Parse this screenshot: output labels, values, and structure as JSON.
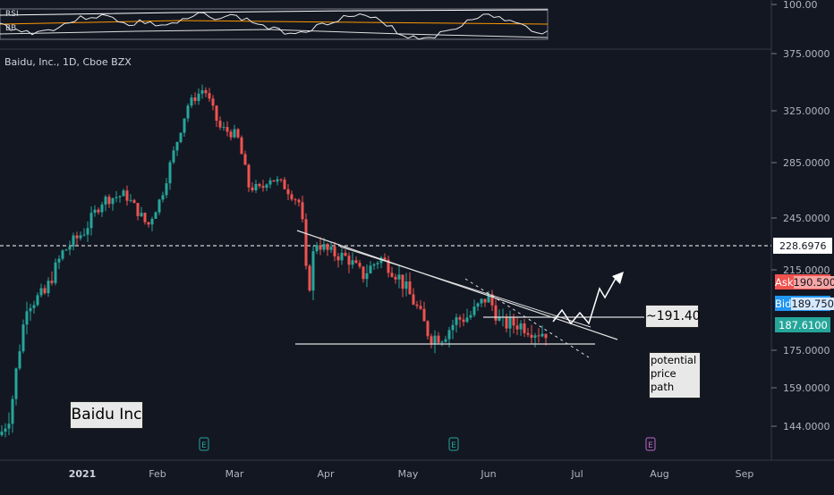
{
  "symbol_title": "Baidu, Inc., 1D, Cboe BZX",
  "indicators": [
    {
      "name": "RSI"
    },
    {
      "name": "BB"
    }
  ],
  "indicator_axis_label": "100.00",
  "price_axis_labels": [
    "375.0000",
    "325.0000",
    "285.0000",
    "245.0000",
    "215.0000",
    "175.0000",
    "159.0000",
    "144.0000"
  ],
  "time_axis_labels": [
    "2021",
    "Feb",
    "Mar",
    "Apr",
    "May",
    "Jun",
    "Jul",
    "Aug",
    "Sep"
  ],
  "dashed_level_label": "228.6976",
  "quote": {
    "ask_label": "Ask",
    "ask_value": "190.5000",
    "bid_label": "Bid",
    "bid_value": "189.7500",
    "last_value": "187.6100"
  },
  "annotations": {
    "target_label": "~191.40",
    "path_note_lines": [
      "potential",
      "price",
      "path"
    ],
    "company_label": "Baidu Inc"
  },
  "earnings_marker_label": "E",
  "colors": {
    "background": "#131722",
    "up": "#26a69a",
    "down": "#ef5350",
    "ask": "#ef5350",
    "bid": "#2196f3",
    "last": "#26a69a"
  },
  "chart_data": {
    "type": "candlestick",
    "x_range": [
      "2020-12-24",
      "2021-09-15"
    ],
    "y_range": [
      130,
      385
    ],
    "candles": []
  }
}
